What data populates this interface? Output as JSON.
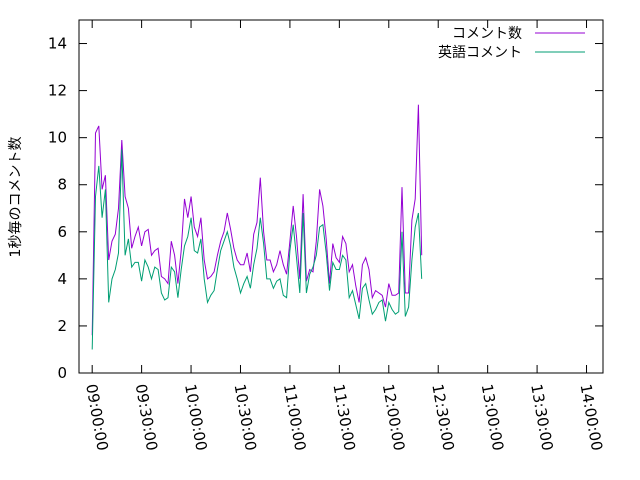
{
  "chart_data": {
    "type": "line",
    "title": "",
    "xlabel": "",
    "ylabel": "1秒毎のコメント数",
    "ylim": [
      0,
      15
    ],
    "y_ticks": [
      0,
      2,
      4,
      6,
      8,
      10,
      12,
      14
    ],
    "x_ticks": [
      "09:00:00",
      "09:30:00",
      "10:00:00",
      "10:30:00",
      "11:00:00",
      "11:30:00",
      "12:00:00",
      "12:30:00",
      "13:00:00",
      "13:30:00",
      "14:00:00"
    ],
    "xlim": [
      "08:52:00",
      "14:10:00"
    ],
    "grid": false,
    "legend_position": "top-right",
    "series": [
      {
        "name": "コメント数",
        "color": "#9400d3",
        "points": [
          [
            "09:00:00",
            1.6
          ],
          [
            "09:02:00",
            10.2
          ],
          [
            "09:04:00",
            10.5
          ],
          [
            "09:06:00",
            7.8
          ],
          [
            "09:08:00",
            8.4
          ],
          [
            "09:10:00",
            4.8
          ],
          [
            "09:12:00",
            5.6
          ],
          [
            "09:14:00",
            5.9
          ],
          [
            "09:16:00",
            7.0
          ],
          [
            "09:18:00",
            9.9
          ],
          [
            "09:20:00",
            7.5
          ],
          [
            "09:22:00",
            7.0
          ],
          [
            "09:24:00",
            5.3
          ],
          [
            "09:26:00",
            5.8
          ],
          [
            "09:28:00",
            6.2
          ],
          [
            "09:30:00",
            5.4
          ],
          [
            "09:32:00",
            6.0
          ],
          [
            "09:34:00",
            6.1
          ],
          [
            "09:36:00",
            5.0
          ],
          [
            "09:38:00",
            5.2
          ],
          [
            "09:40:00",
            5.3
          ],
          [
            "09:42:00",
            4.1
          ],
          [
            "09:44:00",
            4.0
          ],
          [
            "09:46:00",
            3.8
          ],
          [
            "09:48:00",
            5.6
          ],
          [
            "09:50:00",
            5.0
          ],
          [
            "09:52:00",
            3.8
          ],
          [
            "09:54:00",
            5.2
          ],
          [
            "09:56:00",
            7.4
          ],
          [
            "09:58:00",
            6.6
          ],
          [
            "10:00:00",
            7.5
          ],
          [
            "10:02:00",
            6.2
          ],
          [
            "10:04:00",
            5.8
          ],
          [
            "10:06:00",
            6.6
          ],
          [
            "10:08:00",
            4.8
          ],
          [
            "10:10:00",
            4.0
          ],
          [
            "10:12:00",
            4.1
          ],
          [
            "10:14:00",
            4.3
          ],
          [
            "10:16:00",
            5.0
          ],
          [
            "10:18:00",
            5.6
          ],
          [
            "10:20:00",
            6.0
          ],
          [
            "10:22:00",
            6.8
          ],
          [
            "10:24:00",
            6.1
          ],
          [
            "10:26:00",
            5.3
          ],
          [
            "10:28:00",
            4.8
          ],
          [
            "10:30:00",
            4.6
          ],
          [
            "10:32:00",
            4.6
          ],
          [
            "10:34:00",
            5.1
          ],
          [
            "10:36:00",
            4.3
          ],
          [
            "10:38:00",
            5.9
          ],
          [
            "10:40:00",
            6.4
          ],
          [
            "10:42:00",
            8.3
          ],
          [
            "10:44:00",
            6.0
          ],
          [
            "10:46:00",
            4.8
          ],
          [
            "10:48:00",
            4.8
          ],
          [
            "10:50:00",
            4.3
          ],
          [
            "10:52:00",
            4.6
          ],
          [
            "10:54:00",
            5.2
          ],
          [
            "10:56:00",
            4.6
          ],
          [
            "10:58:00",
            4.2
          ],
          [
            "11:00:00",
            5.6
          ],
          [
            "11:02:00",
            7.1
          ],
          [
            "11:04:00",
            5.8
          ],
          [
            "11:06:00",
            4.0
          ],
          [
            "11:08:00",
            7.6
          ],
          [
            "11:10:00",
            3.9
          ],
          [
            "11:12:00",
            4.4
          ],
          [
            "11:14:00",
            4.3
          ],
          [
            "11:16:00",
            5.6
          ],
          [
            "11:18:00",
            7.8
          ],
          [
            "11:20:00",
            7.1
          ],
          [
            "11:22:00",
            5.7
          ],
          [
            "11:24:00",
            3.8
          ],
          [
            "11:26:00",
            5.5
          ],
          [
            "11:28:00",
            4.9
          ],
          [
            "11:30:00",
            4.7
          ],
          [
            "11:32:00",
            5.8
          ],
          [
            "11:34:00",
            5.5
          ],
          [
            "11:36:00",
            4.3
          ],
          [
            "11:38:00",
            4.6
          ],
          [
            "11:40:00",
            3.7
          ],
          [
            "11:42:00",
            3.0
          ],
          [
            "11:44:00",
            4.6
          ],
          [
            "11:46:00",
            4.9
          ],
          [
            "11:48:00",
            4.4
          ],
          [
            "11:50:00",
            3.2
          ],
          [
            "11:52:00",
            3.5
          ],
          [
            "11:54:00",
            3.4
          ],
          [
            "11:56:00",
            3.3
          ],
          [
            "11:58:00",
            2.8
          ],
          [
            "12:00:00",
            3.8
          ],
          [
            "12:02:00",
            3.3
          ],
          [
            "12:04:00",
            3.3
          ],
          [
            "12:06:00",
            3.4
          ],
          [
            "12:08:00",
            7.9
          ],
          [
            "12:10:00",
            3.4
          ],
          [
            "12:12:00",
            3.4
          ],
          [
            "12:14:00",
            6.5
          ],
          [
            "12:16:00",
            7.4
          ],
          [
            "12:18:00",
            11.4
          ],
          [
            "12:20:00",
            5.0
          ]
        ]
      },
      {
        "name": "英語コメント",
        "color": "#009e73",
        "points": [
          [
            "09:00:00",
            1.0
          ],
          [
            "09:02:00",
            7.5
          ],
          [
            "09:04:00",
            8.8
          ],
          [
            "09:06:00",
            6.6
          ],
          [
            "09:08:00",
            7.8
          ],
          [
            "09:10:00",
            3.0
          ],
          [
            "09:12:00",
            4.0
          ],
          [
            "09:14:00",
            4.4
          ],
          [
            "09:16:00",
            5.1
          ],
          [
            "09:18:00",
            9.5
          ],
          [
            "09:20:00",
            5.0
          ],
          [
            "09:22:00",
            5.7
          ],
          [
            "09:24:00",
            4.5
          ],
          [
            "09:26:00",
            4.7
          ],
          [
            "09:28:00",
            4.7
          ],
          [
            "09:30:00",
            3.9
          ],
          [
            "09:32:00",
            4.8
          ],
          [
            "09:34:00",
            4.5
          ],
          [
            "09:36:00",
            4.0
          ],
          [
            "09:38:00",
            4.5
          ],
          [
            "09:40:00",
            4.4
          ],
          [
            "09:42:00",
            3.4
          ],
          [
            "09:44:00",
            3.1
          ],
          [
            "09:46:00",
            3.2
          ],
          [
            "09:48:00",
            4.5
          ],
          [
            "09:50:00",
            4.3
          ],
          [
            "09:52:00",
            3.2
          ],
          [
            "09:54:00",
            4.4
          ],
          [
            "09:56:00",
            5.4
          ],
          [
            "09:58:00",
            5.8
          ],
          [
            "10:00:00",
            6.6
          ],
          [
            "10:02:00",
            5.2
          ],
          [
            "10:04:00",
            5.1
          ],
          [
            "10:06:00",
            5.7
          ],
          [
            "10:08:00",
            4.0
          ],
          [
            "10:10:00",
            3.0
          ],
          [
            "10:12:00",
            3.3
          ],
          [
            "10:14:00",
            3.5
          ],
          [
            "10:16:00",
            4.4
          ],
          [
            "10:18:00",
            5.2
          ],
          [
            "10:20:00",
            5.6
          ],
          [
            "10:22:00",
            6.0
          ],
          [
            "10:24:00",
            5.4
          ],
          [
            "10:26:00",
            4.5
          ],
          [
            "10:28:00",
            4.0
          ],
          [
            "10:30:00",
            3.4
          ],
          [
            "10:32:00",
            3.8
          ],
          [
            "10:34:00",
            4.1
          ],
          [
            "10:36:00",
            3.6
          ],
          [
            "10:38:00",
            4.6
          ],
          [
            "10:40:00",
            5.3
          ],
          [
            "10:42:00",
            6.6
          ],
          [
            "10:44:00",
            5.5
          ],
          [
            "10:46:00",
            4.0
          ],
          [
            "10:48:00",
            4.0
          ],
          [
            "10:50:00",
            3.6
          ],
          [
            "10:52:00",
            3.9
          ],
          [
            "10:54:00",
            4.0
          ],
          [
            "10:56:00",
            3.3
          ],
          [
            "10:58:00",
            3.2
          ],
          [
            "11:00:00",
            5.2
          ],
          [
            "11:02:00",
            6.3
          ],
          [
            "11:04:00",
            4.9
          ],
          [
            "11:06:00",
            3.4
          ],
          [
            "11:08:00",
            6.8
          ],
          [
            "11:10:00",
            3.4
          ],
          [
            "11:12:00",
            4.2
          ],
          [
            "11:14:00",
            4.5
          ],
          [
            "11:16:00",
            5.0
          ],
          [
            "11:18:00",
            6.2
          ],
          [
            "11:20:00",
            6.3
          ],
          [
            "11:22:00",
            5.1
          ],
          [
            "11:24:00",
            3.5
          ],
          [
            "11:26:00",
            4.7
          ],
          [
            "11:28:00",
            4.4
          ],
          [
            "11:30:00",
            4.4
          ],
          [
            "11:32:00",
            5.0
          ],
          [
            "11:34:00",
            4.8
          ],
          [
            "11:36:00",
            3.2
          ],
          [
            "11:38:00",
            3.5
          ],
          [
            "11:40:00",
            2.9
          ],
          [
            "11:42:00",
            2.3
          ],
          [
            "11:44:00",
            3.6
          ],
          [
            "11:46:00",
            3.8
          ],
          [
            "11:48:00",
            3.1
          ],
          [
            "11:50:00",
            2.5
          ],
          [
            "11:52:00",
            2.7
          ],
          [
            "11:54:00",
            3.0
          ],
          [
            "11:56:00",
            3.1
          ],
          [
            "11:58:00",
            2.2
          ],
          [
            "12:00:00",
            3.0
          ],
          [
            "12:02:00",
            2.7
          ],
          [
            "12:04:00",
            2.5
          ],
          [
            "12:06:00",
            2.6
          ],
          [
            "12:08:00",
            6.0
          ],
          [
            "12:10:00",
            2.4
          ],
          [
            "12:12:00",
            2.8
          ],
          [
            "12:14:00",
            4.8
          ],
          [
            "12:16:00",
            6.2
          ],
          [
            "12:18:00",
            6.8
          ],
          [
            "12:20:00",
            4.0
          ]
        ]
      }
    ]
  }
}
